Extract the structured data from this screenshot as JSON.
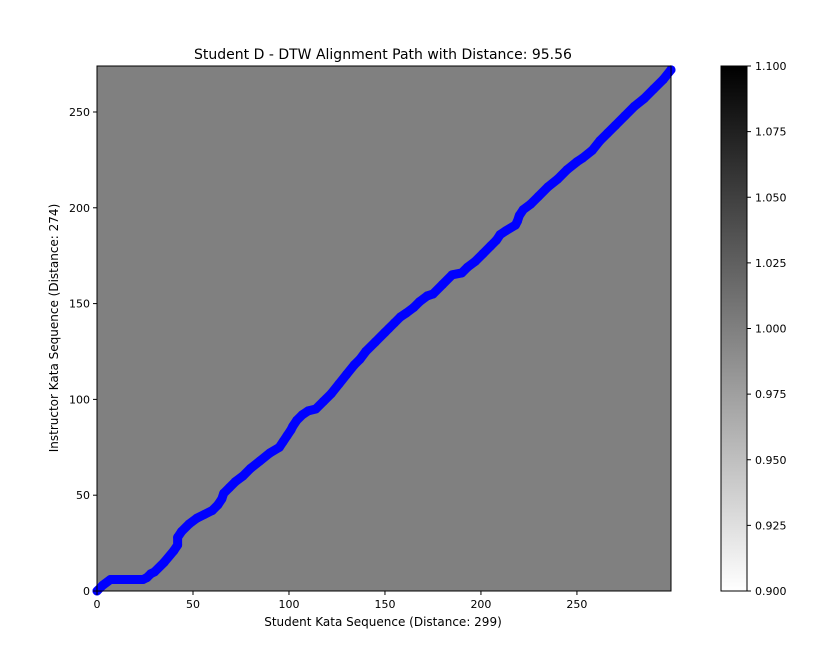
{
  "chart_data": {
    "type": "heatmap",
    "title": "Student D - DTW Alignment Path with Distance: 95.56",
    "xlabel": "Student Kata Sequence (Distance: 299)",
    "ylabel": "Instructor Kata Sequence (Distance: 274)",
    "xlim": [
      0,
      299
    ],
    "ylim": [
      0,
      274
    ],
    "x_ticks": [
      0,
      50,
      100,
      150,
      200,
      250
    ],
    "y_ticks": [
      0,
      50,
      100,
      150,
      200,
      250
    ],
    "x_tick_labels": [
      "0",
      "50",
      "100",
      "150",
      "200",
      "250"
    ],
    "y_tick_labels": [
      "0",
      "50",
      "100",
      "150",
      "200",
      "250"
    ],
    "heatmap_value": 1.0,
    "colormap": "gray_r",
    "colorbar": {
      "min": 0.9,
      "max": 1.1,
      "ticks": [
        0.9,
        0.925,
        0.95,
        0.975,
        1.0,
        1.025,
        1.05,
        1.075,
        1.1
      ],
      "tick_labels": [
        "0.900",
        "0.925",
        "0.950",
        "0.975",
        "1.000",
        "1.025",
        "1.050",
        "1.075",
        "1.100"
      ]
    },
    "grid": false,
    "series": [
      {
        "color": "#0000ff",
        "x": [
          0,
          3,
          7,
          10,
          15,
          20,
          24,
          26,
          28,
          30,
          35,
          40,
          42,
          42,
          44,
          48,
          52,
          56,
          60,
          63,
          65,
          66,
          69,
          72,
          76,
          80,
          85,
          90,
          95,
          97,
          99,
          101,
          102,
          104,
          107,
          110,
          114,
          118,
          122,
          126,
          130,
          134,
          137,
          140,
          145,
          150,
          152,
          155,
          158,
          161,
          165,
          168,
          172,
          175,
          180,
          185,
          190,
          193,
          197,
          201,
          205,
          208,
          210,
          213,
          218,
          219,
          220,
          222,
          226,
          230,
          235,
          240,
          245,
          250,
          253,
          258,
          262,
          266,
          270,
          275,
          280,
          285,
          290,
          295,
          299
        ],
        "y": [
          0,
          3,
          6,
          6,
          6,
          6,
          6,
          7,
          9,
          10,
          15,
          21,
          24,
          28,
          31,
          35,
          38,
          40,
          42,
          45,
          48,
          51,
          54,
          57,
          60,
          64,
          68,
          72,
          75,
          78,
          81,
          84,
          86,
          89,
          92,
          94,
          95,
          99,
          103,
          108,
          113,
          118,
          121,
          125,
          130,
          135,
          137,
          140,
          143,
          145,
          148,
          151,
          154,
          155,
          160,
          165,
          166,
          169,
          172,
          176,
          180,
          183,
          186,
          188,
          191,
          193,
          196,
          199,
          202,
          206,
          211,
          215,
          220,
          224,
          226,
          230,
          235,
          239,
          243,
          248,
          253,
          257,
          262,
          267,
          272
        ]
      }
    ]
  }
}
